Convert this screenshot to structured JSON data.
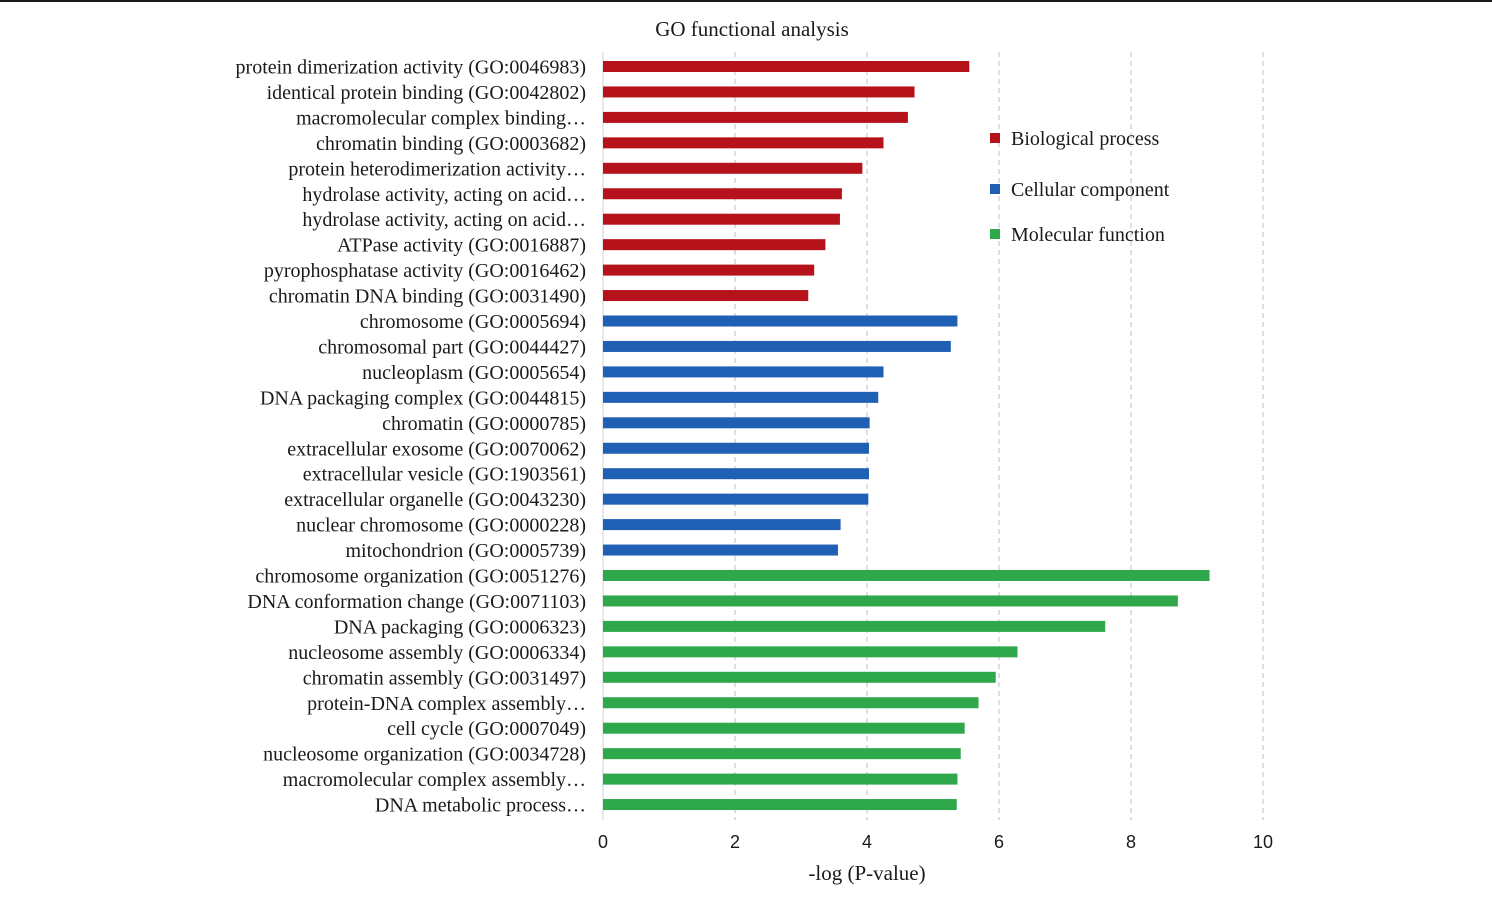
{
  "chart_data": {
    "type": "bar",
    "orientation": "horizontal",
    "title": "GO functional analysis",
    "xlabel": "-log (P-value)",
    "ylabel": "",
    "xlim": [
      0,
      10
    ],
    "xticks": [
      "0",
      "2",
      "4",
      "6",
      "8",
      "10"
    ],
    "grid": "vertical dashed",
    "legend_position": "top-right",
    "series": [
      {
        "name": "Biological process",
        "color": "#b5121b",
        "categories": [
          "protein dimerization activity (GO:0046983)",
          "identical protein binding (GO:0042802)",
          "macromolecular complex binding…",
          "chromatin binding (GO:0003682)",
          "protein heterodimerization activity…",
          "hydrolase activity, acting on acid…",
          "hydrolase activity, acting on acid…",
          "ATPase activity (GO:0016887)",
          "pyrophosphatase activity (GO:0016462)",
          "chromatin DNA binding (GO:0031490)"
        ],
        "values": [
          5.55,
          4.72,
          4.62,
          4.25,
          3.93,
          3.62,
          3.59,
          3.37,
          3.2,
          3.11
        ]
      },
      {
        "name": "Cellular component",
        "color": "#1f5fb4",
        "categories": [
          "chromosome (GO:0005694)",
          "chromosomal part (GO:0044427)",
          "nucleoplasm (GO:0005654)",
          "DNA packaging complex (GO:0044815)",
          "chromatin (GO:0000785)",
          "extracellular exosome (GO:0070062)",
          "extracellular vesicle (GO:1903561)",
          "extracellular organelle (GO:0043230)",
          "nuclear chromosome (GO:0000228)",
          "mitochondrion (GO:0005739)"
        ],
        "values": [
          5.37,
          5.27,
          4.25,
          4.17,
          4.04,
          4.03,
          4.03,
          4.02,
          3.6,
          3.56
        ]
      },
      {
        "name": "Molecular function",
        "color": "#2ea84a",
        "categories": [
          "chromosome organization (GO:0051276)",
          "DNA conformation change (GO:0071103)",
          "DNA packaging (GO:0006323)",
          "nucleosome assembly (GO:0006334)",
          "chromatin assembly (GO:0031497)",
          "protein-DNA complex assembly…",
          "cell cycle (GO:0007049)",
          "nucleosome organization (GO:0034728)",
          "macromolecular complex assembly…",
          "DNA metabolic process…"
        ],
        "values": [
          9.19,
          8.71,
          7.61,
          6.28,
          5.95,
          5.69,
          5.48,
          5.42,
          5.37,
          5.36
        ]
      }
    ]
  }
}
